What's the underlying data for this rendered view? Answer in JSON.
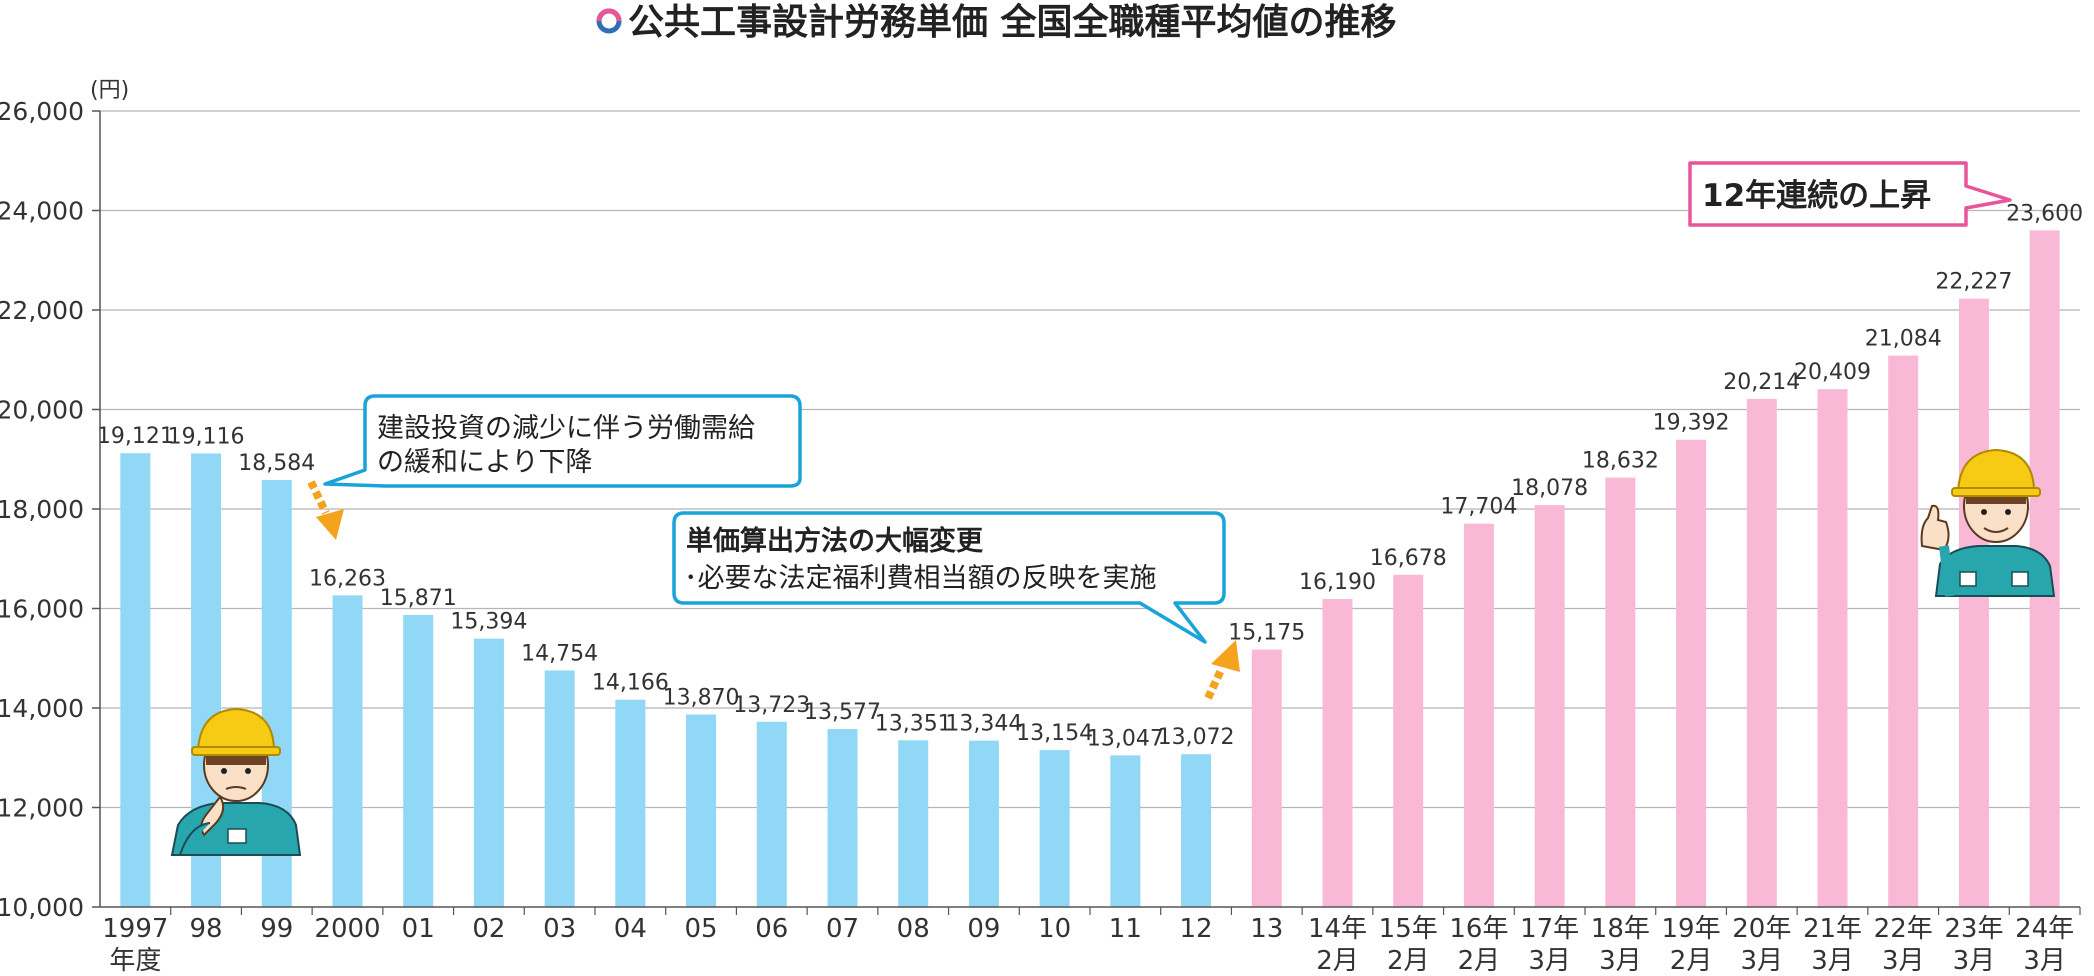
{
  "title": "公共工事設計労務単価 全国全職種平均値の推移",
  "chart_data": {
    "type": "bar",
    "unit": "(円)",
    "ylim": [
      10000,
      26000
    ],
    "yticks": [
      "10,000",
      "12,000",
      "14,000",
      "16,000",
      "18,000",
      "20,000",
      "22,000",
      "24,000",
      "26,000"
    ],
    "grid": true,
    "categories": [
      [
        "1997",
        "年度"
      ],
      [
        "98"
      ],
      [
        "99"
      ],
      [
        "2000"
      ],
      [
        "01"
      ],
      [
        "02"
      ],
      [
        "03"
      ],
      [
        "04"
      ],
      [
        "05"
      ],
      [
        "06"
      ],
      [
        "07"
      ],
      [
        "08"
      ],
      [
        "09"
      ],
      [
        "10"
      ],
      [
        "11"
      ],
      [
        "12"
      ],
      [
        "13"
      ],
      [
        "14年",
        "2月"
      ],
      [
        "15年",
        "2月"
      ],
      [
        "16年",
        "2月"
      ],
      [
        "17年",
        "3月"
      ],
      [
        "18年",
        "3月"
      ],
      [
        "19年",
        "2月"
      ],
      [
        "20年",
        "3月"
      ],
      [
        "21年",
        "3月"
      ],
      [
        "22年",
        "3月"
      ],
      [
        "23年",
        "3月"
      ],
      [
        "24年",
        "3月"
      ]
    ],
    "values": [
      19121,
      19116,
      18584,
      16263,
      15871,
      15394,
      14754,
      14166,
      13870,
      13723,
      13577,
      13351,
      13344,
      13154,
      13047,
      13072,
      15175,
      16190,
      16678,
      17704,
      18078,
      18632,
      19392,
      20214,
      20409,
      21084,
      22227,
      23600
    ],
    "labels": [
      "19,121",
      "19,116",
      "18,584",
      "16,263",
      "15,871",
      "15,394",
      "14,754",
      "14,166",
      "13,870",
      "13,723",
      "13,577",
      "13,351",
      "13,344",
      "13,154",
      "13,047",
      "13,072",
      "15,175",
      "16,190",
      "16,678",
      "17,704",
      "18,078",
      "18,632",
      "19,392",
      "20,214",
      "20,409",
      "21,084",
      "22,227",
      "23,600"
    ],
    "colors": {
      "before_2013": "#90d8f5",
      "from_2013": "#f9b8d6",
      "grid": "#b5b5b5",
      "axis": "#555555"
    },
    "annotations": {
      "decline_lines": [
        "建設投資の減少に伴う労働需給",
        "の緩和により下降"
      ],
      "method_title": "単価算出方法の大幅変更",
      "method_detail": "･必要な法定福利費相当額の反映を実施",
      "streak": "12年連続の上昇"
    }
  },
  "colors": {
    "callout_border": "#1aa3d9",
    "badge_border": "#e8559a",
    "arrow": "#f5a21d",
    "title_icon_pink": "#e8559a",
    "title_icon_blue": "#2f6fb5"
  },
  "icons": [
    "worker-thinking-icon",
    "worker-thumbs-up-icon",
    "down-arrow-icon",
    "up-arrow-icon",
    "title-ring-icon"
  ]
}
